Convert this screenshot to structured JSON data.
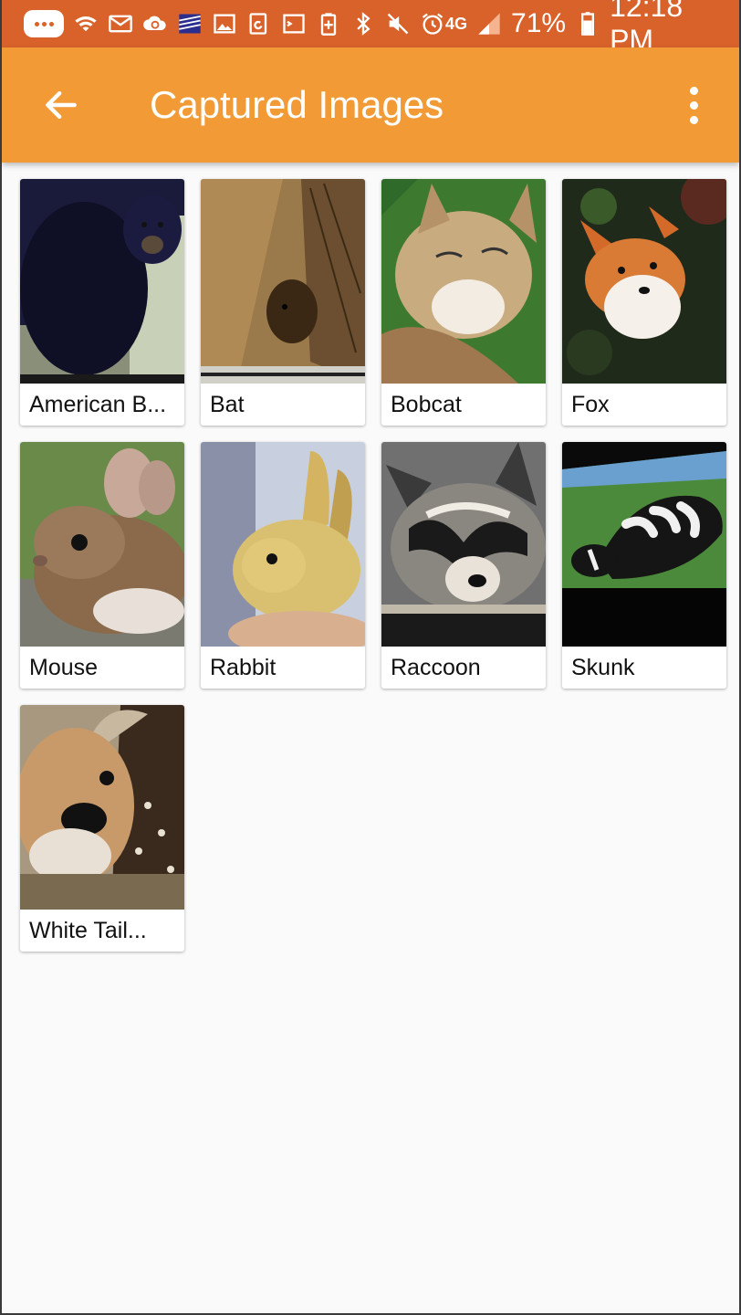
{
  "status_bar": {
    "network_label": "4G",
    "battery": "71%",
    "time": "12:18 PM"
  },
  "app_bar": {
    "title": "Captured Images"
  },
  "images": [
    {
      "label": "American B...",
      "icon": "bear-photo"
    },
    {
      "label": "Bat",
      "icon": "bat-photo"
    },
    {
      "label": "Bobcat",
      "icon": "bobcat-photo"
    },
    {
      "label": "Fox",
      "icon": "fox-photo"
    },
    {
      "label": "Mouse",
      "icon": "mouse-photo"
    },
    {
      "label": "Rabbit",
      "icon": "rabbit-photo"
    },
    {
      "label": "Raccoon",
      "icon": "raccoon-photo"
    },
    {
      "label": "Skunk",
      "icon": "skunk-photo"
    },
    {
      "label": "White Tail...",
      "icon": "deer-photo"
    }
  ],
  "colors": {
    "status_bar": "#d9622b",
    "app_bar": "#f29b36",
    "background": "#fafafa"
  }
}
